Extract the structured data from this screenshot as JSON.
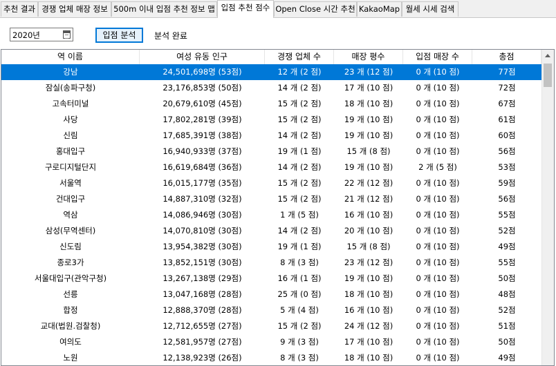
{
  "tabs": [
    {
      "label": "추천 결과",
      "active": false
    },
    {
      "label": "경쟁 업체 매장 정보",
      "active": false
    },
    {
      "label": "500m 이내 입점 추천 정보 맵",
      "active": false
    },
    {
      "label": "입점 추천 점수",
      "active": true
    },
    {
      "label": "Open Close 시간 추천",
      "active": false
    },
    {
      "label": "KakaoMap",
      "active": false
    },
    {
      "label": "월세 시세 검색",
      "active": false
    }
  ],
  "controls": {
    "year_value": "2020년",
    "analyze_button": "입점 분석",
    "status": "분석 완료"
  },
  "table": {
    "columns": [
      "역 이름",
      "여성 유동 인구",
      "경쟁 업체 수",
      "매장 평수",
      "입점 매장 수",
      "총점"
    ],
    "rows": [
      [
        "강남",
        "24,501,698명 (53점)",
        "12 개 (2 점)",
        "23 개 (12 점)",
        "0 개 (10 점)",
        "77점"
      ],
      [
        "잠실(송파구청)",
        "23,176,853명 (50점)",
        "14 개 (2 점)",
        "17 개 (10 점)",
        "0 개 (10 점)",
        "72점"
      ],
      [
        "고속터미널",
        "20,679,610명 (45점)",
        "15 개 (2 점)",
        "18 개 (10 점)",
        "0 개 (10 점)",
        "67점"
      ],
      [
        "사당",
        "17,802,281명 (39점)",
        "15 개 (2 점)",
        "19 개 (10 점)",
        "0 개 (10 점)",
        "61점"
      ],
      [
        "신림",
        "17,685,391명 (38점)",
        "14 개 (2 점)",
        "19 개 (10 점)",
        "0 개 (10 점)",
        "60점"
      ],
      [
        "홍대입구",
        "16,940,933명 (37점)",
        "19 개 (1 점)",
        "15 개 (8 점)",
        "0 개 (10 점)",
        "56점"
      ],
      [
        "구로디지털단지",
        "16,619,684명 (36점)",
        "14 개 (2 점)",
        "19 개 (10 점)",
        "2 개 (5 점)",
        "53점"
      ],
      [
        "서울역",
        "16,015,177명 (35점)",
        "15 개 (2 점)",
        "22 개 (12 점)",
        "0 개 (10 점)",
        "59점"
      ],
      [
        "건대입구",
        "14,887,310명 (32점)",
        "15 개 (2 점)",
        "21 개 (12 점)",
        "0 개 (10 점)",
        "56점"
      ],
      [
        "역삼",
        "14,086,946명 (30점)",
        "1 개 (5 점)",
        "16 개 (10 점)",
        "0 개 (10 점)",
        "55점"
      ],
      [
        "삼성(무역센터)",
        "14,070,810명 (30점)",
        "14 개 (2 점)",
        "20 개 (10 점)",
        "0 개 (10 점)",
        "52점"
      ],
      [
        "신도림",
        "13,954,382명 (30점)",
        "19 개 (1 점)",
        "15 개 (8 점)",
        "0 개 (10 점)",
        "49점"
      ],
      [
        "종로3가",
        "13,852,151명 (30점)",
        "8 개 (3 점)",
        "23 개 (12 점)",
        "0 개 (10 점)",
        "55점"
      ],
      [
        "서울대입구(관악구청)",
        "13,267,138명 (29점)",
        "16 개 (1 점)",
        "19 개 (10 점)",
        "0 개 (10 점)",
        "50점"
      ],
      [
        "선릉",
        "13,047,168명 (28점)",
        "25 개 (0 점)",
        "18 개 (10 점)",
        "0 개 (10 점)",
        "48점"
      ],
      [
        "합정",
        "12,888,370명 (28점)",
        "5 개 (4 점)",
        "16 개 (10 점)",
        "0 개 (10 점)",
        "52점"
      ],
      [
        "교대(법원.검찰청)",
        "12,712,655명 (27점)",
        "15 개 (2 점)",
        "24 개 (12 점)",
        "0 개 (10 점)",
        "51점"
      ],
      [
        "여의도",
        "12,581,957명 (27점)",
        "9 개 (3 점)",
        "17 개 (10 점)",
        "0 개 (10 점)",
        "50점"
      ],
      [
        "노원",
        "12,138,923명 (26점)",
        "8 개 (3 점)",
        "18 개 (10 점)",
        "0 개 (10 점)",
        "49점"
      ]
    ],
    "selected_row": 0
  },
  "colors": {
    "selection": "#0078d7",
    "selection_text": "#ffffff"
  }
}
